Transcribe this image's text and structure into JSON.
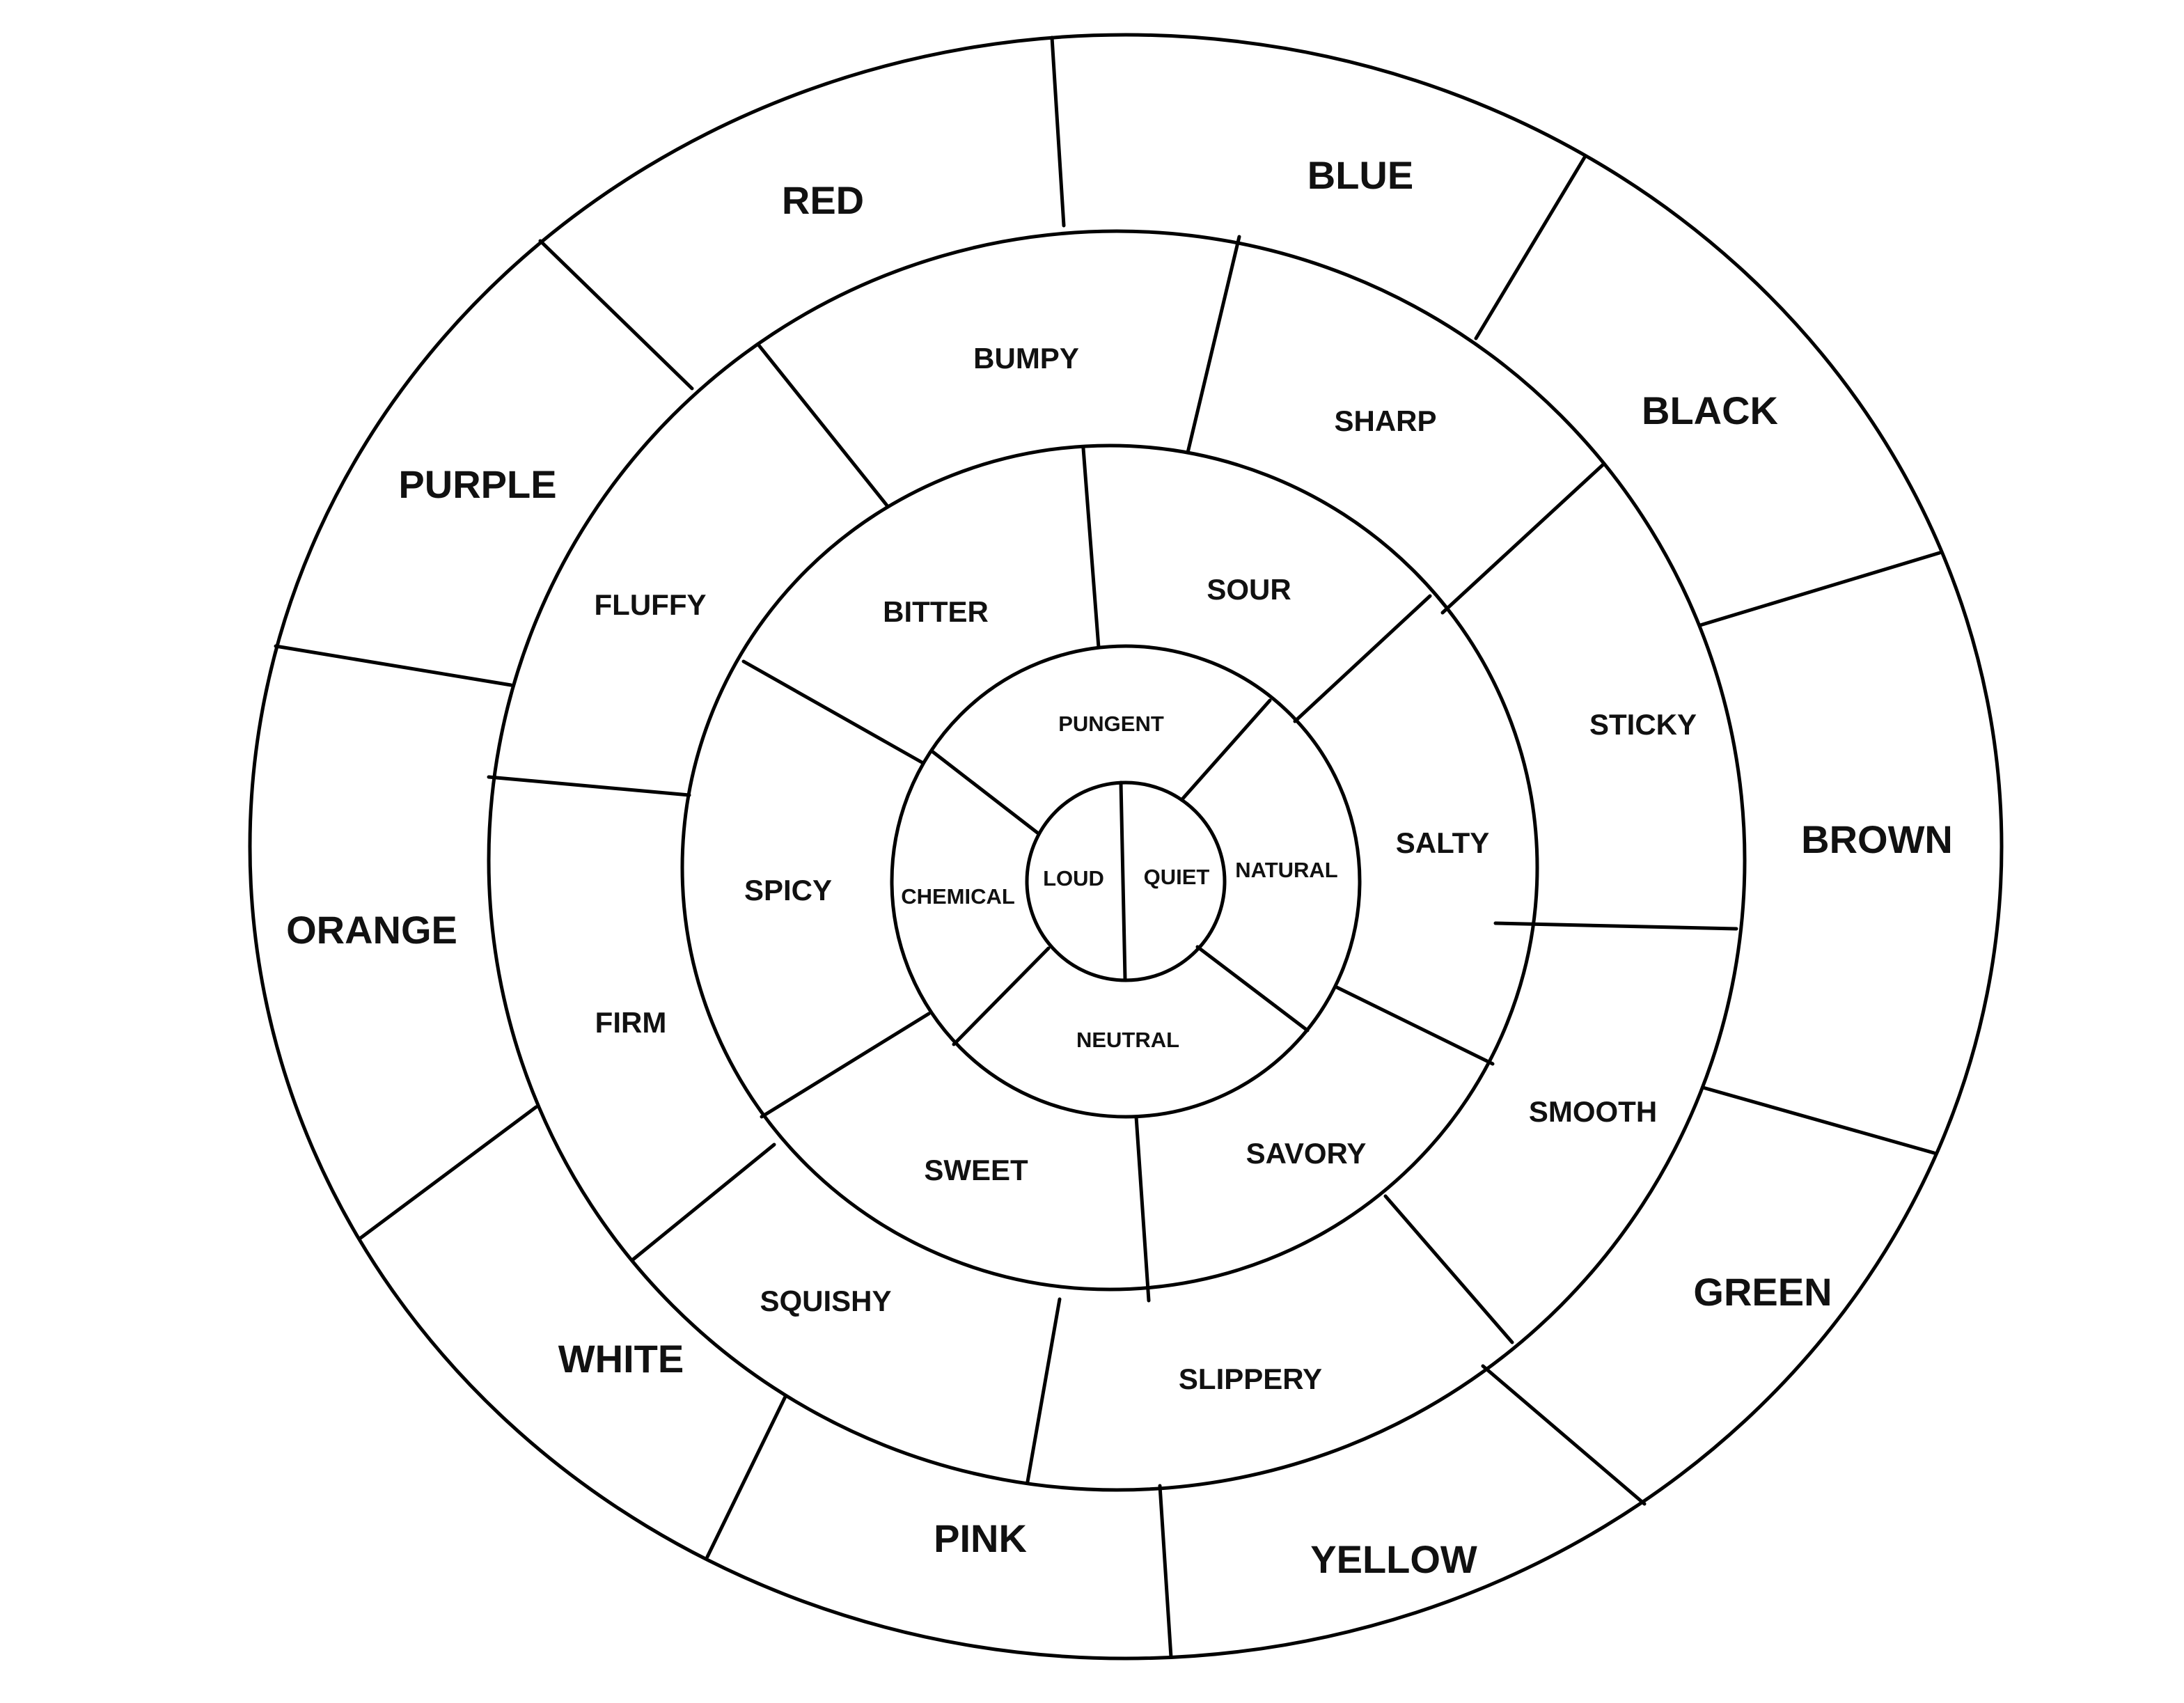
{
  "colors": [
    "RED",
    "BLUE",
    "BLACK",
    "BROWN",
    "GREEN",
    "YELLOW",
    "PINK",
    "WHITE",
    "ORANGE",
    "PURPLE"
  ],
  "textures": [
    "BUMPY",
    "SHARP",
    "STICKY",
    "SMOOTH",
    "SLIPPERY",
    "SQUISHY",
    "FIRM",
    "FLUFFY"
  ],
  "tastes": [
    "BITTER",
    "SOUR",
    "SALTY",
    "SAVORY",
    "SWEET",
    "SPICY"
  ],
  "smells": [
    "PUNGENT",
    "NATURAL",
    "NEUTRAL",
    "CHEMICAL"
  ],
  "sounds": [
    "LOUD",
    "QUIET"
  ],
  "style": {
    "line_color": "#000000",
    "text_color": "#111111",
    "background": "#ffffff"
  }
}
